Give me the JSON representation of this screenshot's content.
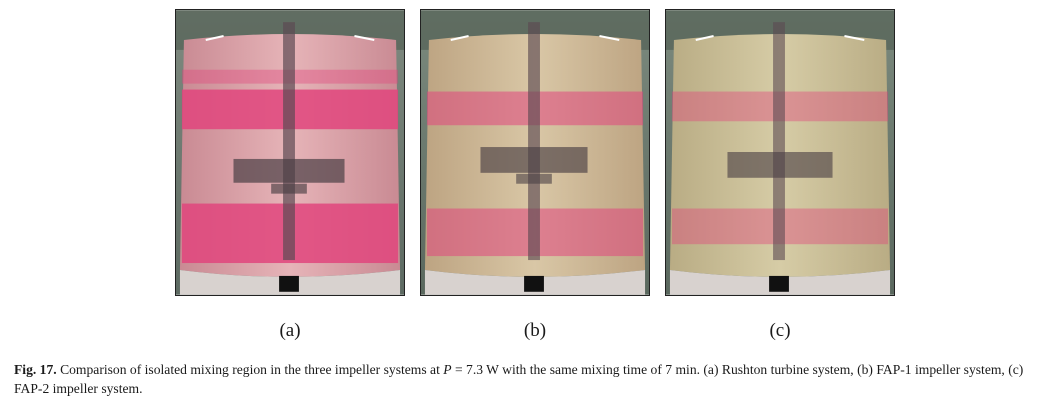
{
  "figure": {
    "panels": [
      {
        "id": "a",
        "label": "(a)",
        "liquid_color": "#d9a3a8",
        "band_color": "#e0457d",
        "band_strength": 0.85
      },
      {
        "id": "b",
        "label": "(b)",
        "liquid_color": "#cdb89a",
        "band_color": "#e0457d",
        "band_strength": 0.55
      },
      {
        "id": "c",
        "label": "(c)",
        "liquid_color": "#c9bd98",
        "band_color": "#e0457d",
        "band_strength": 0.4
      }
    ],
    "caption": {
      "fig_label": "Fig. 17.",
      "text_before_var": " Comparison of isolated mixing region in the three impeller systems at ",
      "variable": "P",
      "text_after_var": " = 7.3 W with the same mixing time of 7 min. (a) Rushton turbine system, (b) FAP-1 impeller system, (c) FAP-2 impeller system."
    }
  }
}
